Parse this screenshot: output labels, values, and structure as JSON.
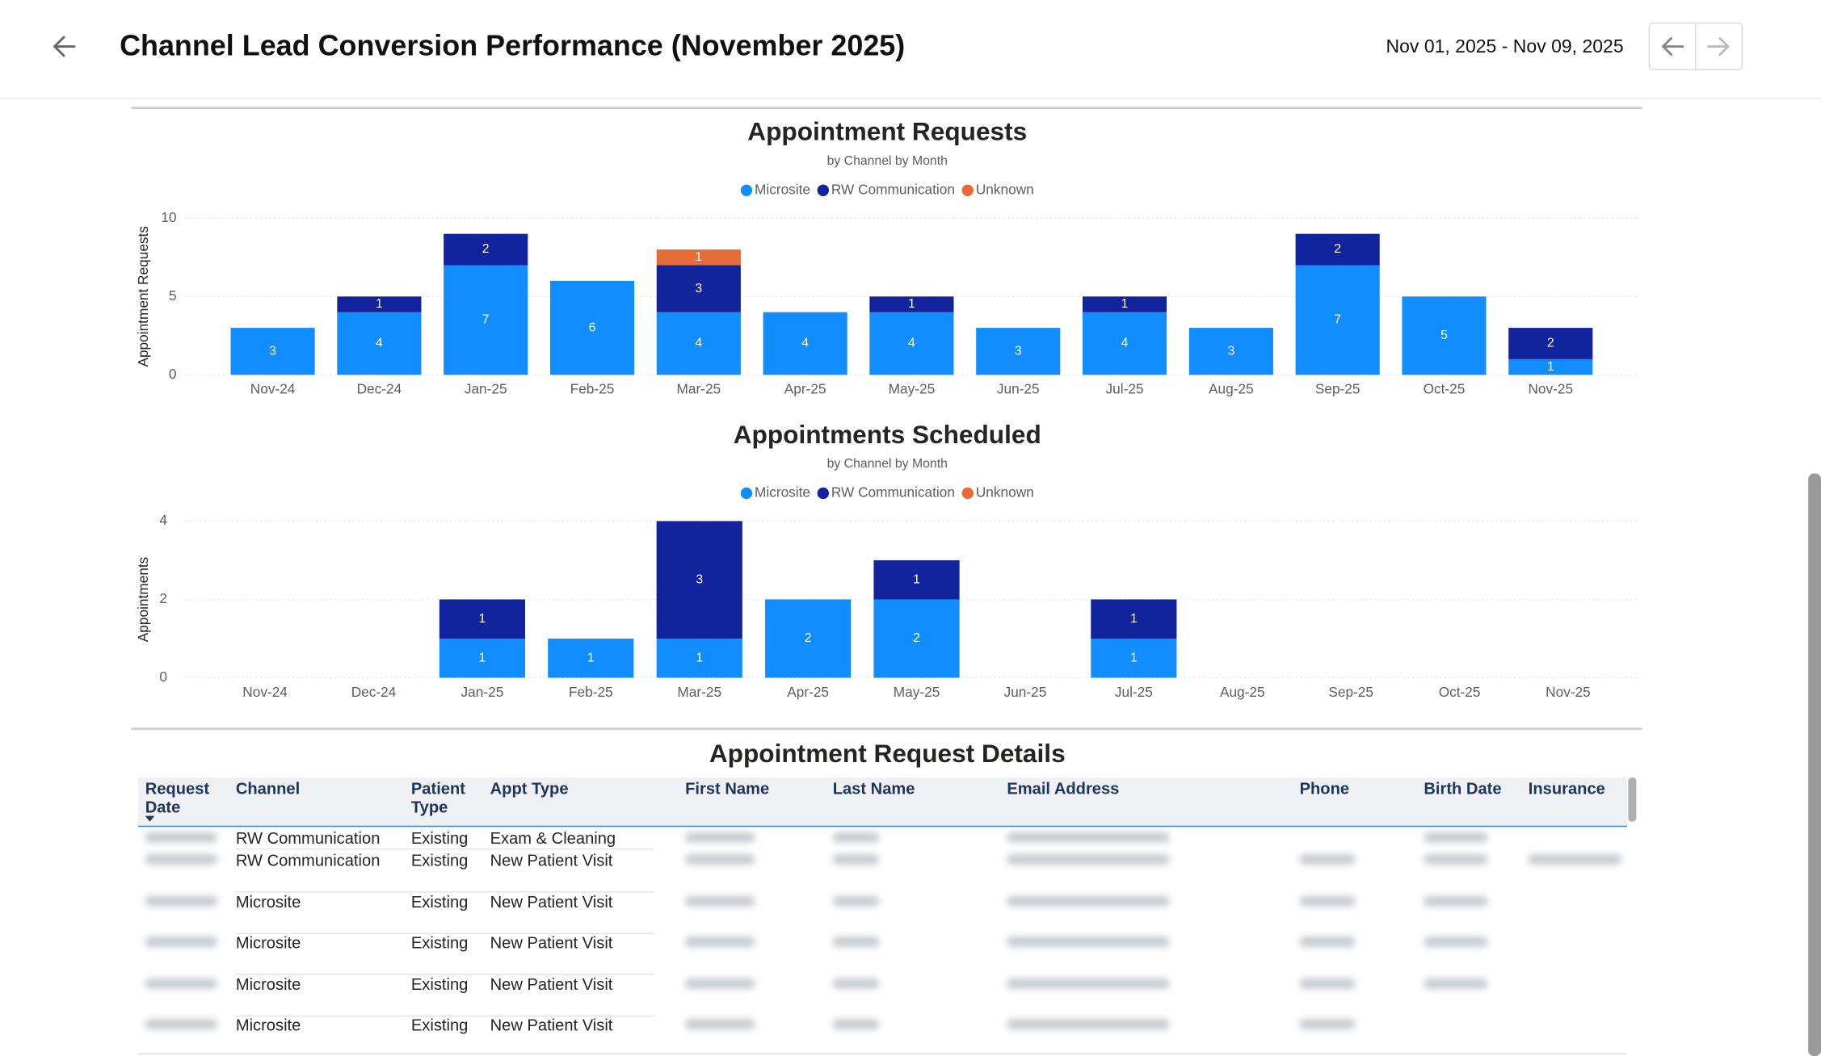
{
  "header": {
    "title": "Channel Lead Conversion Performance (November 2025)",
    "date_range": "Nov 01, 2025 - Nov 09, 2025"
  },
  "chart_data": [
    {
      "type": "bar",
      "title": "Appointment Requests",
      "subtitle": "by Channel by Month",
      "y_label": "Appointment Requests",
      "categories": [
        "Nov-24",
        "Dec-24",
        "Jan-25",
        "Feb-25",
        "Mar-25",
        "Apr-25",
        "May-25",
        "Jun-25",
        "Jul-25",
        "Aug-25",
        "Sep-25",
        "Oct-25",
        "Nov-25"
      ],
      "series": [
        {
          "name": "Microsite",
          "color": "#118DFF",
          "values": [
            3,
            4,
            7,
            6,
            4,
            4,
            4,
            3,
            4,
            3,
            7,
            5,
            1
          ]
        },
        {
          "name": "RW Communication",
          "color": "#12239E",
          "values": [
            null,
            1,
            2,
            null,
            3,
            null,
            1,
            null,
            1,
            null,
            2,
            null,
            2
          ]
        },
        {
          "name": "Unknown",
          "color": "#E66C37",
          "values": [
            null,
            null,
            null,
            null,
            1,
            null,
            null,
            null,
            null,
            null,
            null,
            null,
            null
          ]
        }
      ],
      "ylim": [
        0,
        10
      ],
      "yticks": [
        0,
        5,
        10
      ],
      "grid": true,
      "stacked": true
    },
    {
      "type": "bar",
      "title": "Appointments Scheduled",
      "subtitle": "by Channel by Month",
      "y_label": "Appointments",
      "categories": [
        "Nov-24",
        "Dec-24",
        "Jan-25",
        "Feb-25",
        "Mar-25",
        "Apr-25",
        "May-25",
        "Jun-25",
        "Jul-25",
        "Aug-25",
        "Sep-25",
        "Oct-25",
        "Nov-25"
      ],
      "series": [
        {
          "name": "Microsite",
          "color": "#118DFF",
          "values": [
            null,
            null,
            1,
            1,
            1,
            2,
            2,
            null,
            1,
            null,
            null,
            null,
            null
          ]
        },
        {
          "name": "RW Communication",
          "color": "#12239E",
          "values": [
            null,
            null,
            1,
            null,
            3,
            null,
            1,
            null,
            1,
            null,
            null,
            null,
            null
          ]
        },
        {
          "name": "Unknown",
          "color": "#E66C37",
          "values": [
            null,
            null,
            null,
            null,
            null,
            null,
            null,
            null,
            null,
            null,
            null,
            null,
            null
          ]
        }
      ],
      "ylim": [
        0,
        4
      ],
      "yticks": [
        0,
        2,
        4
      ],
      "grid": true,
      "stacked": true
    }
  ],
  "table": {
    "title": "Appointment Request Details",
    "columns": [
      "Request Date",
      "Channel",
      "Patient Type",
      "Appt Type",
      "First Name",
      "Last Name",
      "Email Address",
      "Phone",
      "Birth Date",
      "Insurance"
    ],
    "rows": [
      [
        "RW Communication",
        "Existing",
        "Exam & Cleaning"
      ],
      [
        "RW Communication",
        "Existing",
        "New Patient Visit"
      ],
      [
        "Microsite",
        "Existing",
        "New Patient Visit"
      ],
      [
        "Microsite",
        "Existing",
        "New Patient Visit"
      ],
      [
        "Microsite",
        "Existing",
        "New Patient Visit"
      ],
      [
        "Microsite",
        "Existing",
        "New Patient Visit"
      ]
    ]
  }
}
